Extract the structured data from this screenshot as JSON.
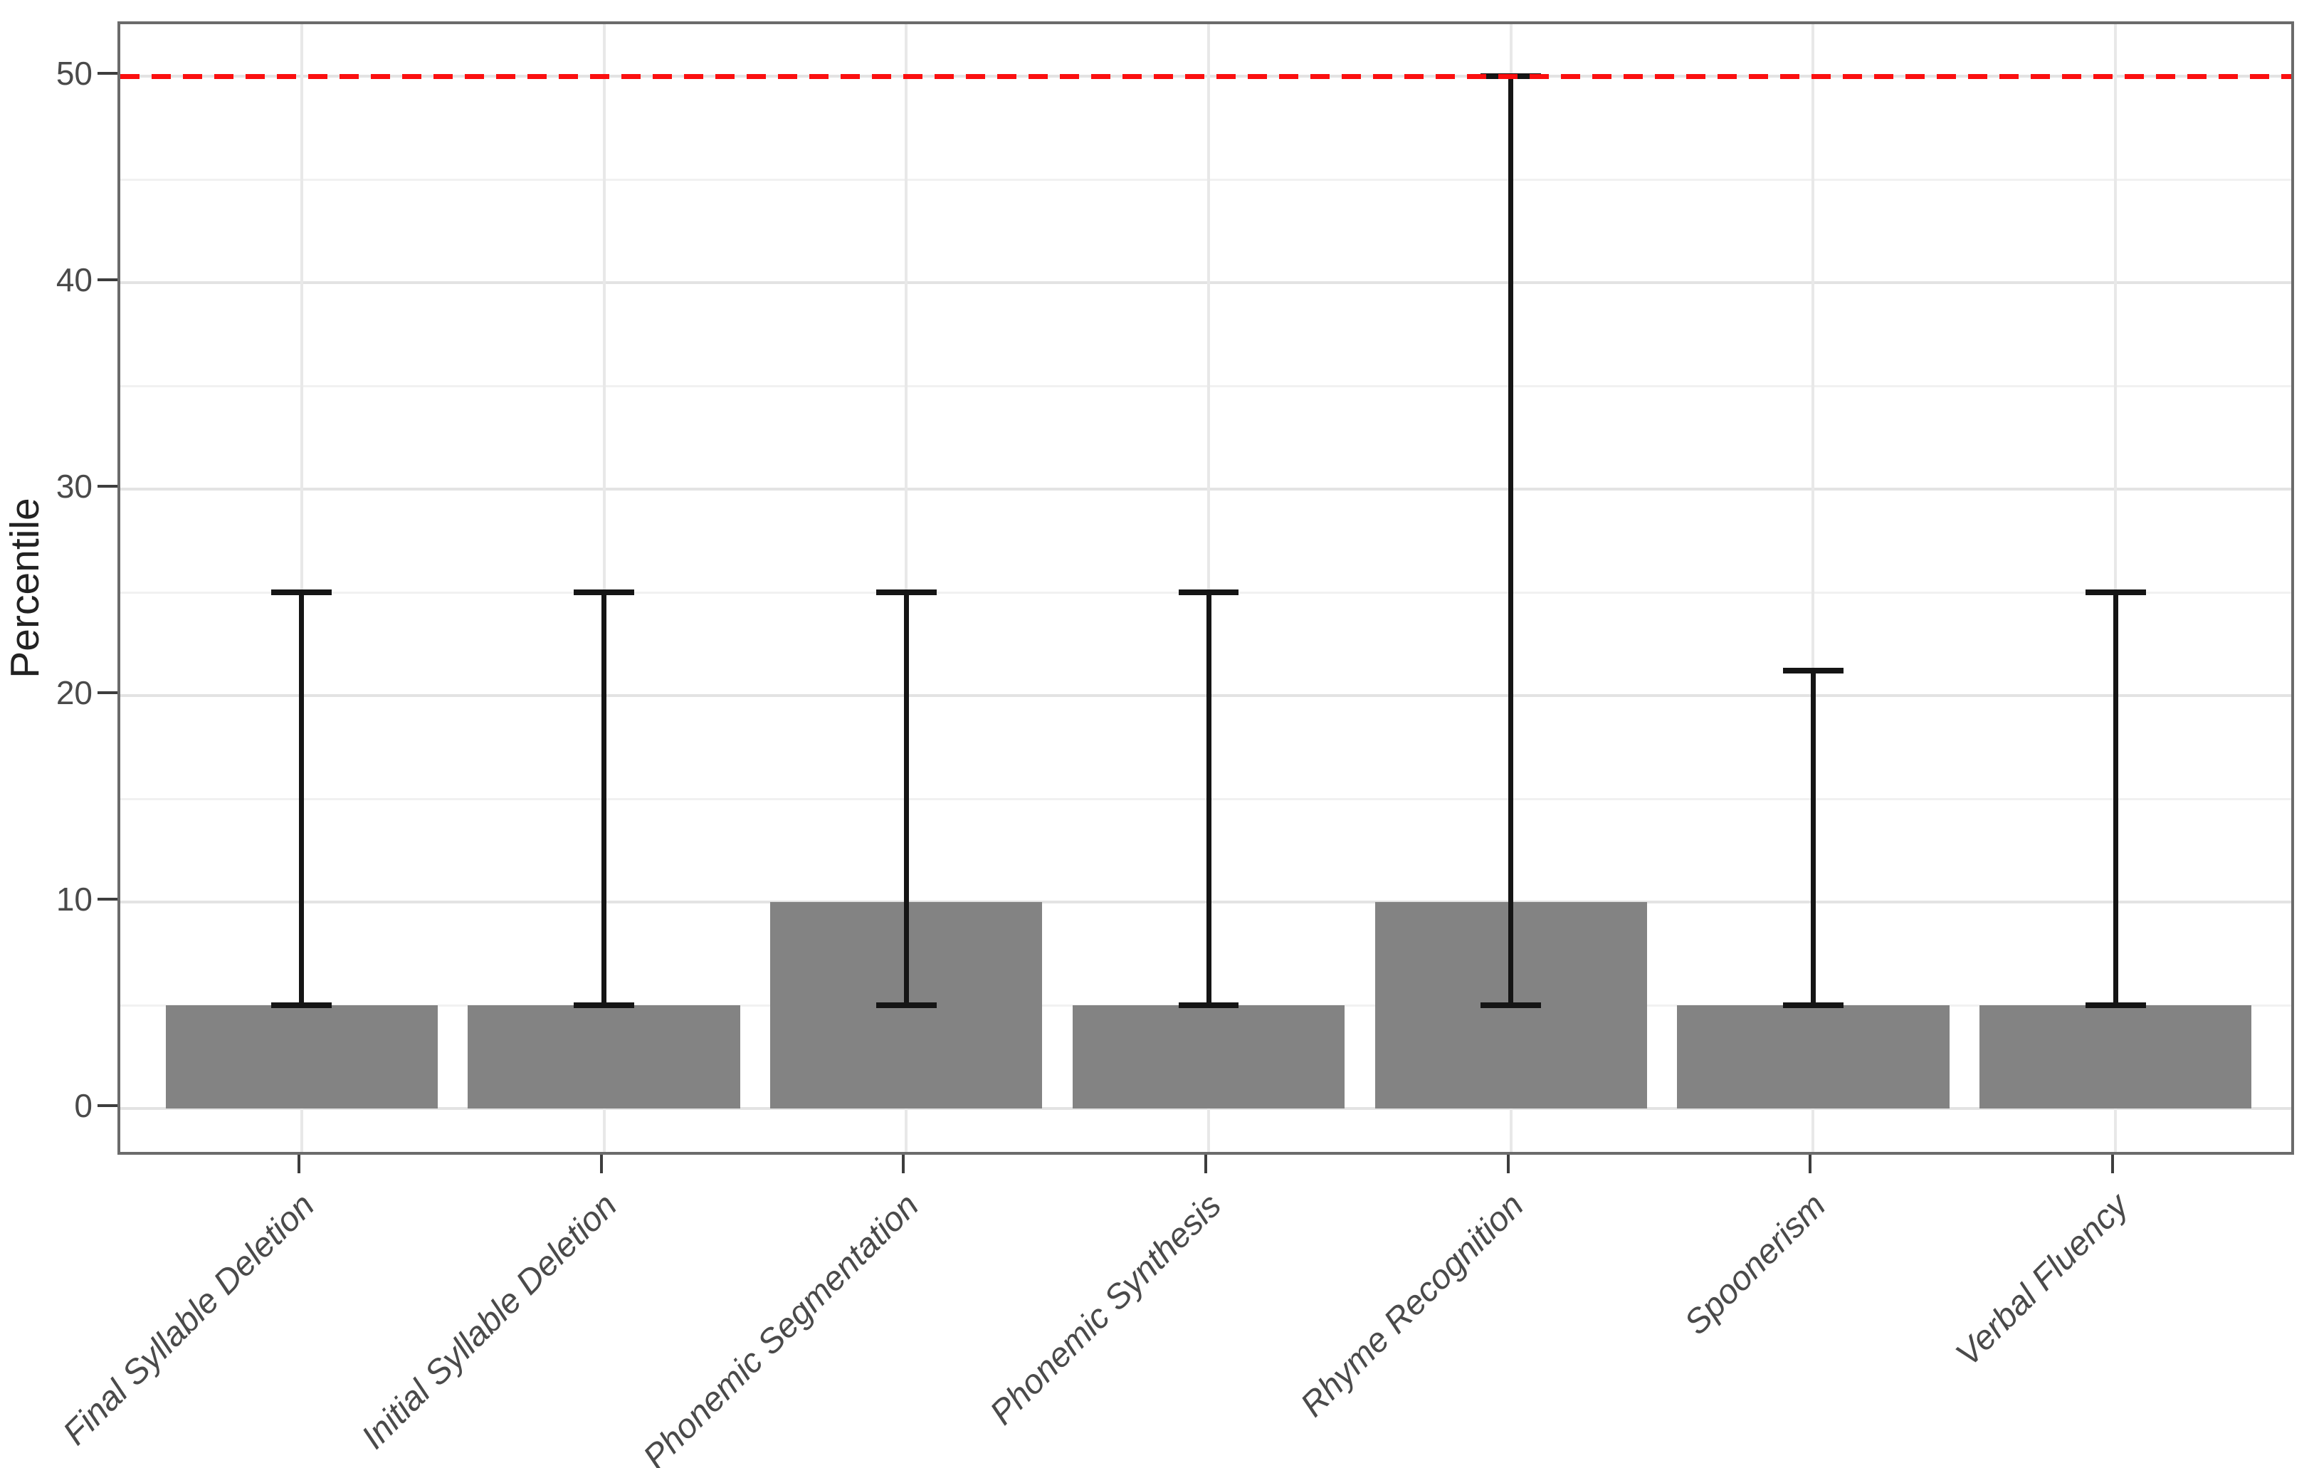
{
  "chart_data": {
    "type": "bar",
    "title": "",
    "xlabel": "",
    "ylabel": "Percentile",
    "categories": [
      "Final Syllable Deletion",
      "Initial Syllable Deletion",
      "Phonemic Segmentation",
      "Phonemic Synthesis",
      "Rhyme Recognition",
      "Spoonerism",
      "Verbal Fluency"
    ],
    "values": [
      5,
      5,
      10,
      5,
      10,
      5,
      5
    ],
    "error_bars": {
      "lower": [
        5,
        5,
        5,
        5,
        5,
        5,
        5
      ],
      "upper": [
        25,
        25,
        25,
        25,
        50,
        21.2,
        25
      ]
    },
    "reference_line": {
      "y": 50,
      "style": "dashed",
      "color": "#fb0f0f"
    },
    "ylim": [
      0,
      50
    ],
    "yticks": [
      0,
      10,
      20,
      30,
      40,
      50
    ],
    "yticks_minor": [
      5,
      15,
      25,
      35,
      45
    ],
    "ytick_labels": [
      "0",
      "10",
      "20",
      "30",
      "40",
      "50"
    ],
    "grid": "horizontal majors and minors on; vertical majors at category centers",
    "legend": "none",
    "bar_fill": "#838383",
    "error_color": "#151515"
  }
}
